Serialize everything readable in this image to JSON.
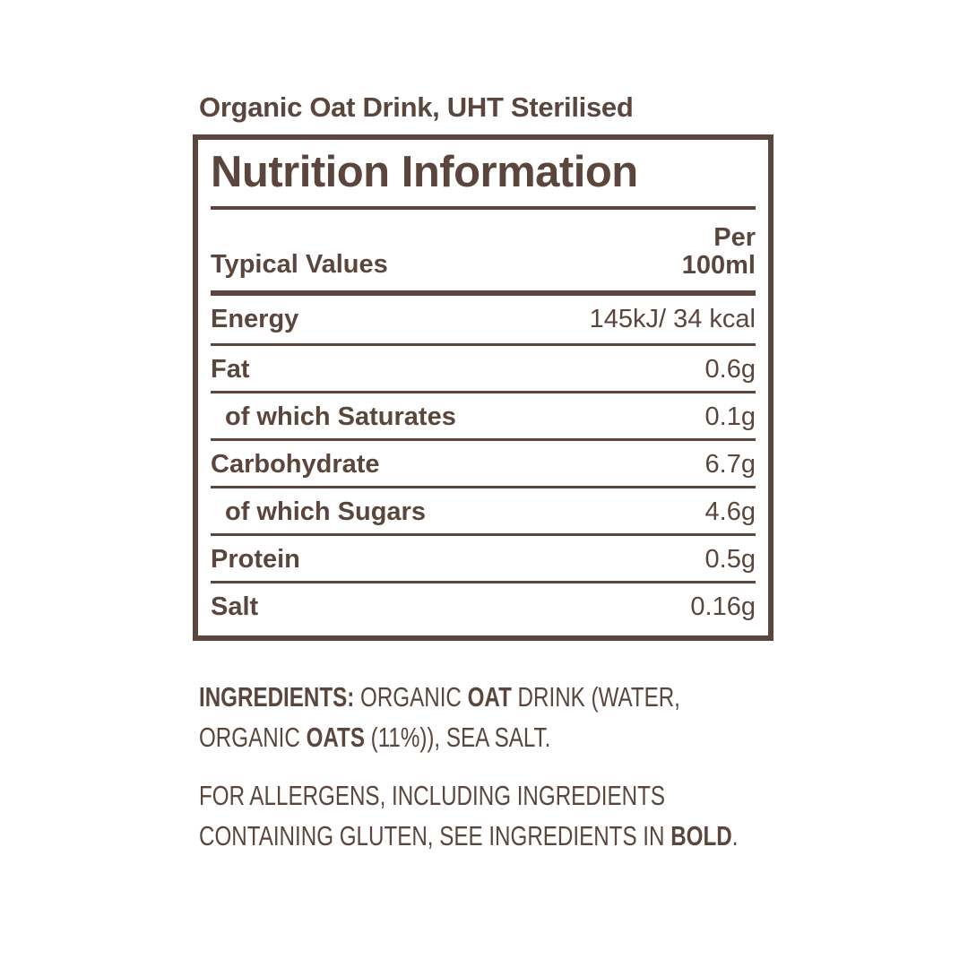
{
  "product": {
    "title": "Organic Oat Drink, UHT Sterilised"
  },
  "nutrition": {
    "title": "Nutrition Information",
    "header": {
      "label": "Typical Values",
      "column_line1": "Per",
      "column_line2": "100ml"
    },
    "rows": [
      {
        "label": "Energy",
        "value": "145kJ/ 34 kcal",
        "indent": false
      },
      {
        "label": "Fat",
        "value": "0.6g",
        "indent": false
      },
      {
        "label": "of which Saturates",
        "value": "0.1g",
        "indent": true
      },
      {
        "label": "Carbohydrate",
        "value": "6.7g",
        "indent": false
      },
      {
        "label": "of which Sugars",
        "value": "4.6g",
        "indent": true
      },
      {
        "label": "Protein",
        "value": "0.5g",
        "indent": false
      },
      {
        "label": "Salt",
        "value": "0.16g",
        "indent": false
      }
    ]
  },
  "ingredients": {
    "lines": [
      [
        {
          "text": "INGREDIENTS: ",
          "bold": true
        },
        {
          "text": "ORGANIC ",
          "bold": false
        },
        {
          "text": "OAT",
          "bold": true
        },
        {
          "text": " DRINK (WATER,",
          "bold": false
        }
      ],
      [
        {
          "text": "ORGANIC ",
          "bold": false
        },
        {
          "text": "OATS",
          "bold": true
        },
        {
          "text": " (11%)), SEA SALT.",
          "bold": false
        }
      ]
    ]
  },
  "allergen": {
    "lines": [
      [
        {
          "text": "FOR ALLERGENS, INCLUDING INGREDIENTS",
          "bold": false
        }
      ],
      [
        {
          "text": "CONTAINING GLUTEN, SEE INGREDIENTS IN ",
          "bold": false
        },
        {
          "text": "BOLD",
          "bold": true
        },
        {
          "text": ".",
          "bold": false
        }
      ]
    ]
  },
  "colors": {
    "text_brown": "#5a463c",
    "background": "#ffffff"
  }
}
